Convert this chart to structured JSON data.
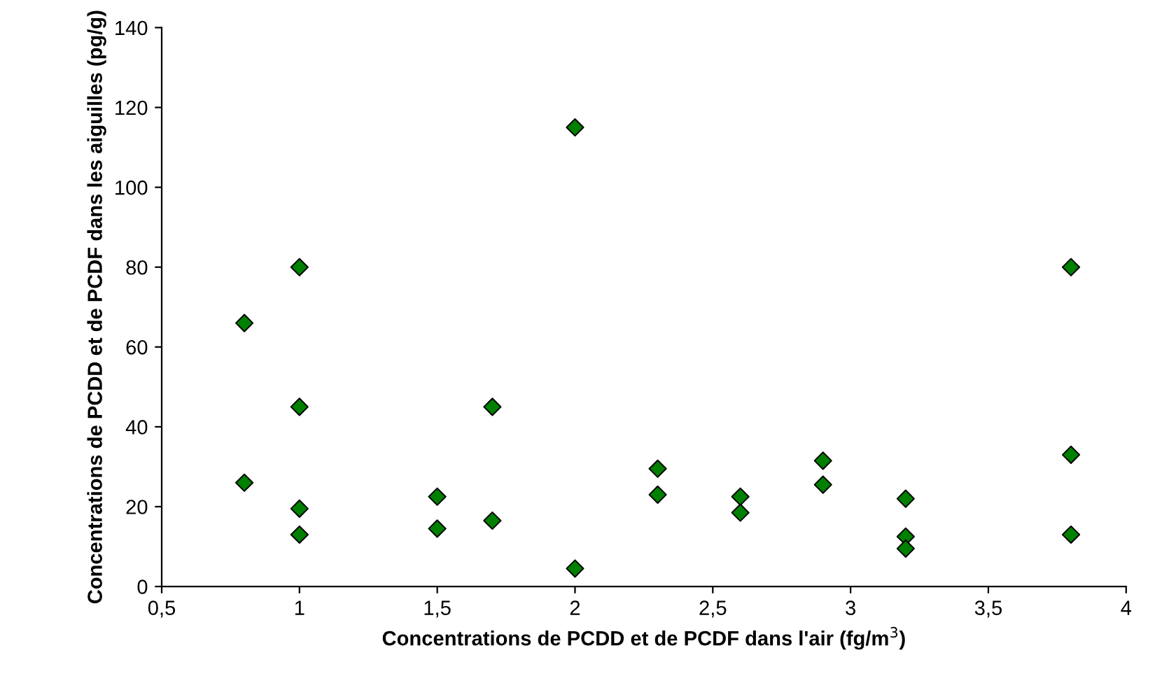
{
  "chart_data": {
    "type": "scatter",
    "xlabel": "Concentrations de PCDD et de PCDF dans l'air (fg/m$^{3}$)",
    "ylabel": "Concentrations de PCDD et de PCDF dans les aiguilles (pg/g)",
    "series": [
      {
        "color": "#008000",
        "x": [
          0.8,
          0.8,
          1,
          1,
          1,
          1,
          1.5,
          1.5,
          1.7,
          1.7,
          2,
          2,
          2.3,
          2.3,
          2.6,
          2.6,
          2.9,
          2.9,
          3.2,
          3.2,
          3.2,
          3.8,
          3.8,
          3.8
        ],
        "values": [
          66,
          26,
          80,
          45,
          19.5,
          13,
          22.5,
          14.5,
          45,
          16.5,
          115,
          4.5,
          29.5,
          23,
          22.5,
          18.5,
          31.5,
          25.5,
          22,
          12.5,
          9.5,
          80,
          33,
          13
        ]
      }
    ],
    "marker": "diamond",
    "grid": false,
    "legend": false,
    "xlim": [
      0.5,
      4
    ],
    "xticks": [
      {
        "value": 0.5,
        "label": "0,5"
      },
      1,
      {
        "value": 1.5,
        "label": "1,5"
      },
      2,
      {
        "value": 2.5,
        "label": "2,5"
      },
      3,
      {
        "value": 3.5,
        "label": "3,5"
      },
      4
    ],
    "ylim": [
      0,
      140
    ],
    "yticks": [
      0,
      20,
      40,
      60,
      80,
      100,
      120,
      140
    ]
  }
}
